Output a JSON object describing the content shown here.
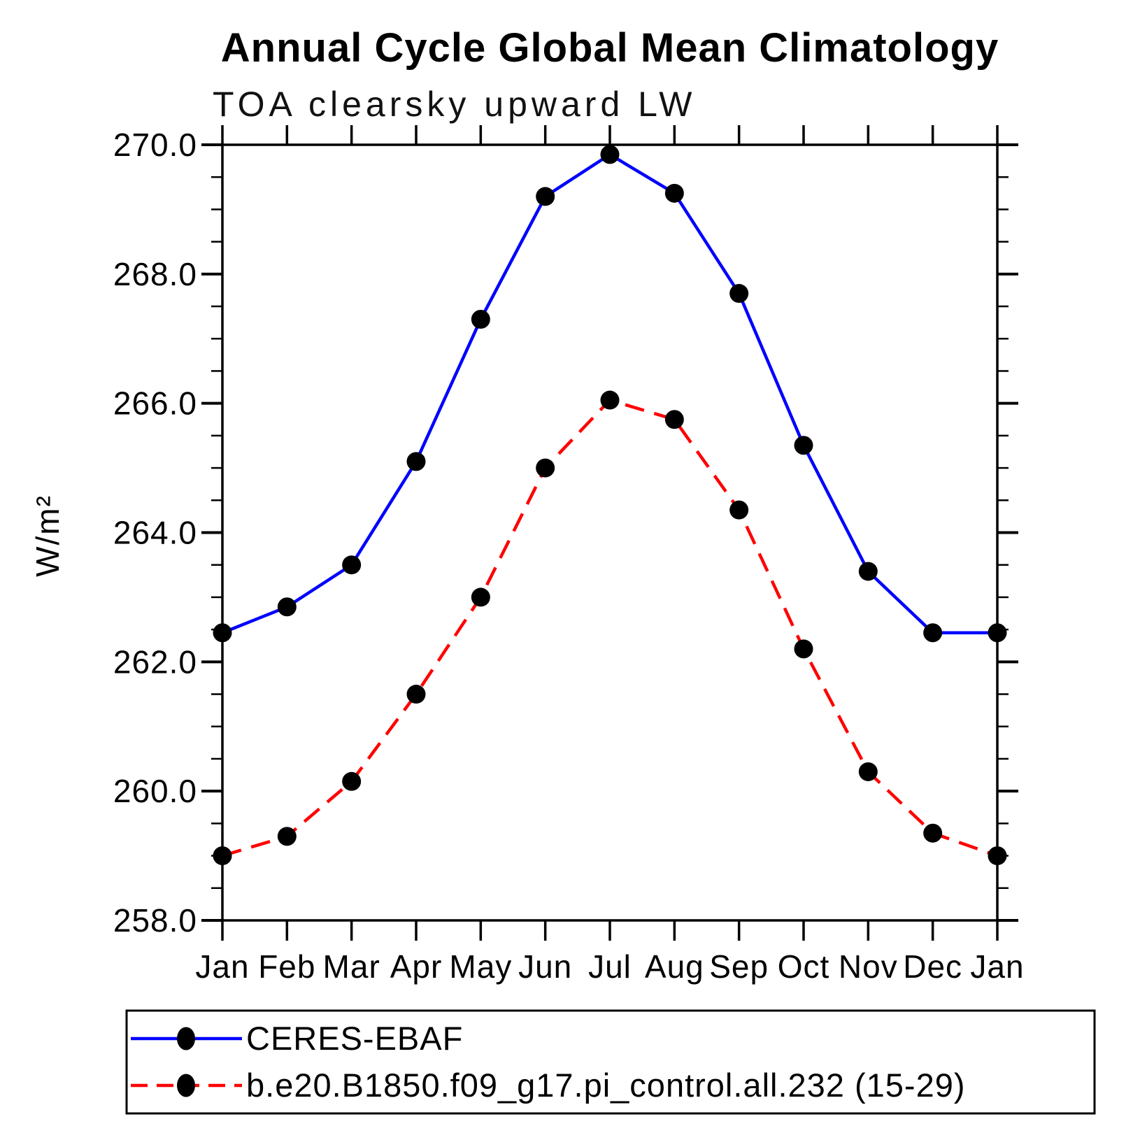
{
  "title": "Annual Cycle Global Mean Climatology",
  "subtitle": "TOA clearsky upward LW",
  "chart_data": {
    "type": "line",
    "title": "Annual Cycle Global Mean Climatology",
    "subtitle": "TOA clearsky upward LW",
    "xlabel": "",
    "ylabel": "W/m²",
    "ylim": [
      258.0,
      270.0
    ],
    "ytick_interval": 2.0,
    "ytick_minor_interval": 0.5,
    "ytick_labels": [
      "270.0",
      "268.0",
      "266.0",
      "264.0",
      "262.0",
      "260.0",
      "258.0"
    ],
    "categories": [
      "Jan",
      "Feb",
      "Mar",
      "Apr",
      "May",
      "Jun",
      "Jul",
      "Aug",
      "Sep",
      "Oct",
      "Nov",
      "Dec",
      "Jan"
    ],
    "grid": false,
    "marker": "filled-circle",
    "marker_color": "#000000",
    "legend_position": "bottom",
    "series": [
      {
        "name": "CERES-EBAF",
        "color": "#0000ff",
        "style": "solid",
        "values": [
          262.45,
          262.85,
          263.5,
          265.1,
          267.3,
          269.2,
          269.85,
          269.25,
          267.7,
          265.35,
          263.4,
          262.45,
          262.45
        ]
      },
      {
        "name": "b.e20.B1850.f09_g17.pi_control.all.232 (15-29)",
        "color": "#ff0000",
        "style": "dashed",
        "values": [
          259.0,
          259.3,
          260.15,
          261.5,
          263.0,
          265.0,
          266.05,
          265.75,
          264.35,
          262.2,
          260.3,
          259.35,
          259.0
        ]
      }
    ]
  }
}
